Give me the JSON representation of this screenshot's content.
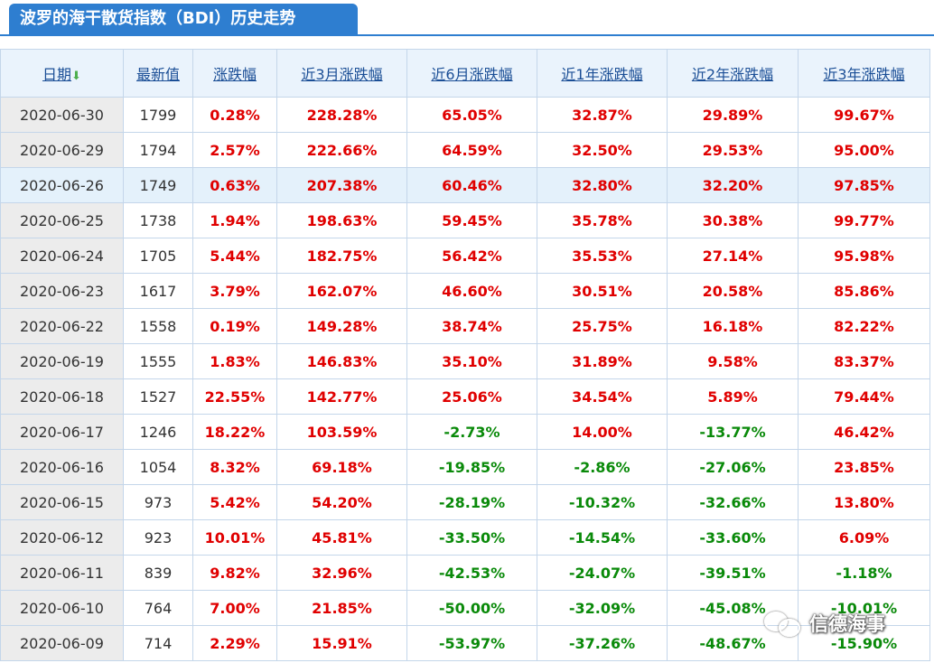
{
  "title": "波罗的海干散货指数（BDI）历史走势",
  "headers": {
    "date": "日期",
    "latest": "最新值",
    "change": "涨跌幅",
    "m3": "近3月涨跌幅",
    "m6": "近6月涨跌幅",
    "y1": "近1年涨跌幅",
    "y2": "近2年涨跌幅",
    "y3": "近3年涨跌幅"
  },
  "sort_icon": "down-arrow-icon",
  "colors": {
    "up": "#e00000",
    "down": "#0a8a0a",
    "accent": "#2e7ed0"
  },
  "rows": [
    {
      "date": "2020-06-30",
      "latest": "1799",
      "change": "0.28%",
      "m3": "228.28%",
      "m6": "65.05%",
      "y1": "32.87%",
      "y2": "29.89%",
      "y3": "99.67%"
    },
    {
      "date": "2020-06-29",
      "latest": "1794",
      "change": "2.57%",
      "m3": "222.66%",
      "m6": "64.59%",
      "y1": "32.50%",
      "y2": "29.53%",
      "y3": "95.00%"
    },
    {
      "date": "2020-06-26",
      "latest": "1749",
      "change": "0.63%",
      "m3": "207.38%",
      "m6": "60.46%",
      "y1": "32.80%",
      "y2": "32.20%",
      "y3": "97.85%"
    },
    {
      "date": "2020-06-25",
      "latest": "1738",
      "change": "1.94%",
      "m3": "198.63%",
      "m6": "59.45%",
      "y1": "35.78%",
      "y2": "30.38%",
      "y3": "99.77%"
    },
    {
      "date": "2020-06-24",
      "latest": "1705",
      "change": "5.44%",
      "m3": "182.75%",
      "m6": "56.42%",
      "y1": "35.53%",
      "y2": "27.14%",
      "y3": "95.98%"
    },
    {
      "date": "2020-06-23",
      "latest": "1617",
      "change": "3.79%",
      "m3": "162.07%",
      "m6": "46.60%",
      "y1": "30.51%",
      "y2": "20.58%",
      "y3": "85.86%"
    },
    {
      "date": "2020-06-22",
      "latest": "1558",
      "change": "0.19%",
      "m3": "149.28%",
      "m6": "38.74%",
      "y1": "25.75%",
      "y2": "16.18%",
      "y3": "82.22%"
    },
    {
      "date": "2020-06-19",
      "latest": "1555",
      "change": "1.83%",
      "m3": "146.83%",
      "m6": "35.10%",
      "y1": "31.89%",
      "y2": "9.58%",
      "y3": "83.37%"
    },
    {
      "date": "2020-06-18",
      "latest": "1527",
      "change": "22.55%",
      "m3": "142.77%",
      "m6": "25.06%",
      "y1": "34.54%",
      "y2": "5.89%",
      "y3": "79.44%"
    },
    {
      "date": "2020-06-17",
      "latest": "1246",
      "change": "18.22%",
      "m3": "103.59%",
      "m6": "-2.73%",
      "y1": "14.00%",
      "y2": "-13.77%",
      "y3": "46.42%"
    },
    {
      "date": "2020-06-16",
      "latest": "1054",
      "change": "8.32%",
      "m3": "69.18%",
      "m6": "-19.85%",
      "y1": "-2.86%",
      "y2": "-27.06%",
      "y3": "23.85%"
    },
    {
      "date": "2020-06-15",
      "latest": "973",
      "change": "5.42%",
      "m3": "54.20%",
      "m6": "-28.19%",
      "y1": "-10.32%",
      "y2": "-32.66%",
      "y3": "13.80%"
    },
    {
      "date": "2020-06-12",
      "latest": "923",
      "change": "10.01%",
      "m3": "45.81%",
      "m6": "-33.50%",
      "y1": "-14.54%",
      "y2": "-33.60%",
      "y3": "6.09%"
    },
    {
      "date": "2020-06-11",
      "latest": "839",
      "change": "9.82%",
      "m3": "32.96%",
      "m6": "-42.53%",
      "y1": "-24.07%",
      "y2": "-39.51%",
      "y3": "-1.18%"
    },
    {
      "date": "2020-06-10",
      "latest": "764",
      "change": "7.00%",
      "m3": "21.85%",
      "m6": "-50.00%",
      "y1": "-32.09%",
      "y2": "-45.08%",
      "y3": "-10.01%"
    },
    {
      "date": "2020-06-09",
      "latest": "714",
      "change": "2.29%",
      "m3": "15.91%",
      "m6": "-53.97%",
      "y1": "-37.26%",
      "y2": "-48.67%",
      "y3": "-15.90%"
    }
  ],
  "watermark": {
    "text": "信德海事",
    "icon": "wechat-icon"
  }
}
